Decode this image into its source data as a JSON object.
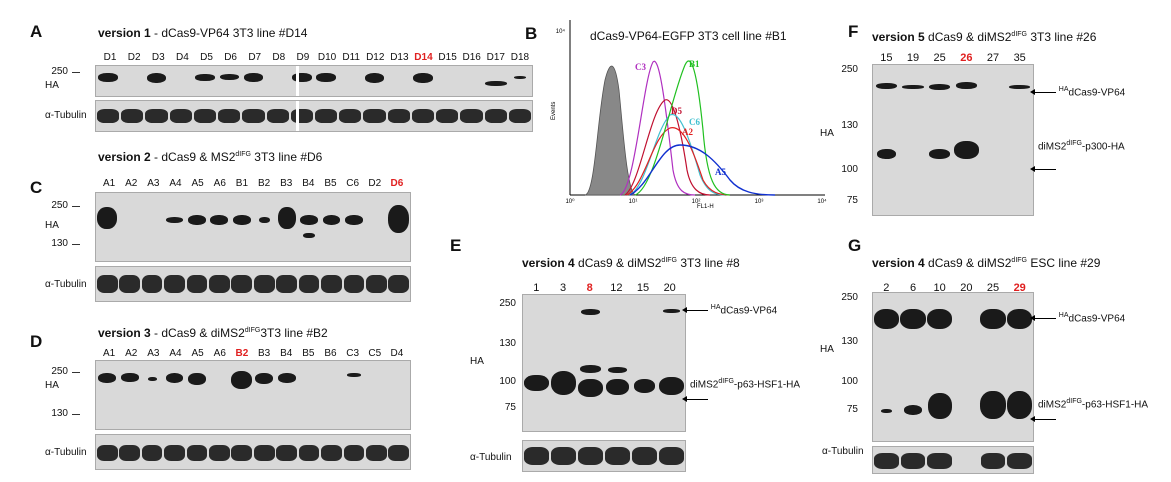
{
  "panelA": {
    "letter": "A",
    "title_bold": "version 1",
    "title_rest": " - dCas9-VP64 3T3 line #D14",
    "lanes": [
      "D1",
      "D2",
      "D3",
      "D4",
      "D5",
      "D6",
      "D7",
      "D8",
      "D9",
      "D10",
      "D11",
      "D12",
      "D13",
      "D14",
      "D15",
      "D16",
      "D17",
      "D18"
    ],
    "highlight": "D14",
    "mw": [
      "250"
    ],
    "label_ha": "HA",
    "label_tub": "α-Tubulin"
  },
  "panelB": {
    "letter": "B",
    "title": "dCas9-VP64-EGFP 3T3 cell line #B1",
    "ylabel": "Events",
    "xlabel": "FL1-H",
    "ytop": "10⁴",
    "xticks": [
      "10⁰",
      "10¹",
      "10²",
      "10³",
      "10⁴"
    ],
    "curves": [
      {
        "name": "C3",
        "color": "#b030c0"
      },
      {
        "name": "D5",
        "color": "#c01030"
      },
      {
        "name": "B1",
        "color": "#20c020"
      },
      {
        "name": "C6",
        "color": "#40c0d0"
      },
      {
        "name": "A2",
        "color": "#e02020"
      },
      {
        "name": "A5",
        "color": "#1030d0"
      }
    ]
  },
  "panelC": {
    "letter": "C",
    "title_bold": "version 2",
    "title_rest": " - dCas9 & MS2",
    "title_sup": "dIFG",
    "title_end": " 3T3 line #D6",
    "lanes": [
      "A1",
      "A2",
      "A3",
      "A4",
      "A5",
      "A6",
      "B1",
      "B2",
      "B3",
      "B4",
      "B5",
      "C6",
      "D2",
      "D6"
    ],
    "highlight": "D6",
    "mw": [
      "250",
      "130"
    ],
    "label_ha": "HA",
    "label_tub": "α-Tubulin"
  },
  "panelD": {
    "letter": "D",
    "title_bold": "version 3",
    "title_rest": " - dCas9 & diMS2",
    "title_sup": "dIFG",
    "title_end": "3T3 line #B2",
    "lanes": [
      "A1",
      "A2",
      "A3",
      "A4",
      "A5",
      "A6",
      "B2",
      "B3",
      "B4",
      "B5",
      "B6",
      "C3",
      "C5",
      "D4"
    ],
    "highlight": "B2",
    "mw": [
      "250",
      "130"
    ],
    "label_ha": "HA",
    "label_tub": "α-Tubulin"
  },
  "panelE": {
    "letter": "E",
    "title_bold": "version 4",
    "title_rest": "  dCas9 & diMS2",
    "title_sup": "dIFG",
    "title_end": "  3T3 line #8",
    "lanes": [
      "1",
      "3",
      "8",
      "12",
      "15",
      "20"
    ],
    "highlight": "8",
    "mw": [
      "250",
      "130",
      "100",
      "75"
    ],
    "label_ha": "HA",
    "label_tub": "α-Tubulin",
    "arrow1_sup": "HA",
    "arrow1": "dCas9-VP64",
    "arrow2_pre": "diMS2",
    "arrow2_sup": "dIFG",
    "arrow2_post": "-p63-HSF1-HA"
  },
  "panelF": {
    "letter": "F",
    "title_bold": "version 5",
    "title_rest": "  dCas9 & diMS2",
    "title_sup": "dIFG",
    "title_end": "  3T3 line #26",
    "lanes": [
      "15",
      "19",
      "25",
      "26",
      "27",
      "35"
    ],
    "highlight": "26",
    "mw": [
      "250",
      "130",
      "100",
      "75"
    ],
    "label_ha": "HA",
    "arrow1_sup": "HA",
    "arrow1": "dCas9-VP64",
    "arrow2_pre": "diMS2",
    "arrow2_sup": "dIFG",
    "arrow2_post": "-p300-HA"
  },
  "panelG": {
    "letter": "G",
    "title_bold": "version 4",
    "title_rest": "  dCas9 & diMS2",
    "title_sup": "dIFG",
    "title_end": "  ESC line #29",
    "lanes": [
      "2",
      "6",
      "10",
      "20",
      "25",
      "29"
    ],
    "highlight": "29",
    "mw": [
      "250",
      "130",
      "100",
      "75"
    ],
    "label_ha": "HA",
    "label_tub": "α-Tubulin",
    "arrow1_sup": "HA",
    "arrow1": "dCas9-VP64",
    "arrow2_pre": "diMS2",
    "arrow2_sup": "dIFG",
    "arrow2_post": "-p63-HSF1-HA"
  }
}
